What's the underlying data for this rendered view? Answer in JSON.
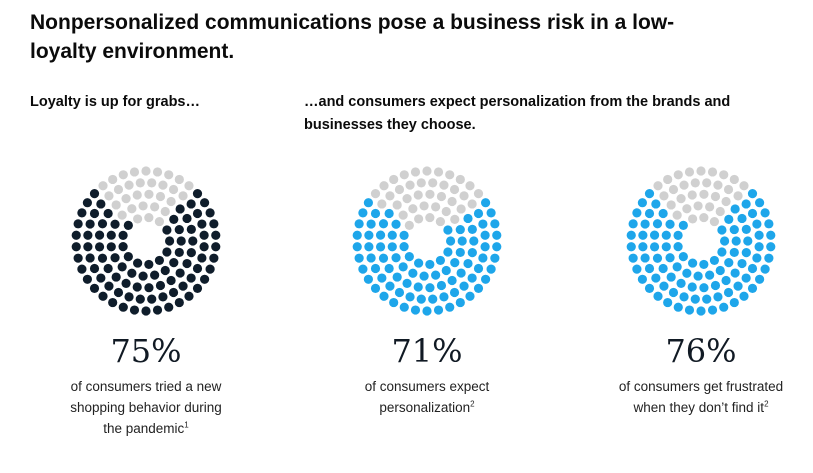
{
  "title": "Nonpersonalized communications pose a business risk in a low-loyalty environment.",
  "subtitle_left": "Loyalty is up for grabs…",
  "subtitle_right": "…and consumers expect personalization from the brands and businesses they choose.",
  "colors": {
    "empty": "#d0d0d0",
    "dark": "#0f1d2b",
    "blue": "#1ea6ea"
  },
  "chart_data": [
    {
      "type": "pie",
      "style": "dot-pie",
      "value": 75,
      "label": "75%",
      "fill_color": "#0f1d2b",
      "empty_color": "#d0d0d0",
      "caption_lines": [
        "of consumers tried a new",
        "shopping behavior during",
        "the pandemic"
      ],
      "footnote": "1"
    },
    {
      "type": "pie",
      "style": "dot-pie",
      "value": 71,
      "label": "71%",
      "fill_color": "#1ea6ea",
      "empty_color": "#d0d0d0",
      "caption_lines": [
        "of consumers expect",
        "personalization"
      ],
      "footnote": "2"
    },
    {
      "type": "pie",
      "style": "dot-pie",
      "value": 76,
      "label": "76%",
      "fill_color": "#1ea6ea",
      "empty_color": "#d0d0d0",
      "caption_lines": [
        "of consumers get frustrated",
        "when they don’t find it"
      ],
      "footnote": "2"
    }
  ]
}
